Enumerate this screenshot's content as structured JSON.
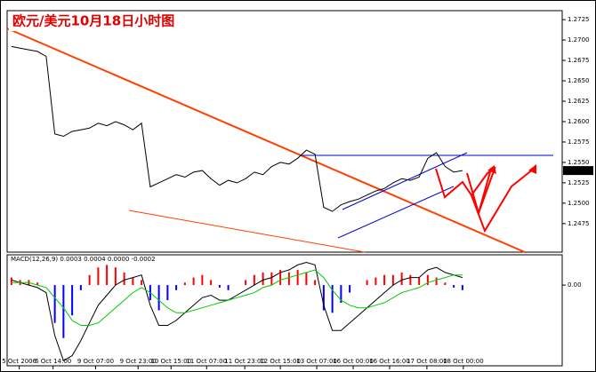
{
  "chart_data": [
    {
      "type": "line",
      "title": "欧元/美元10月18日小时图",
      "xlim": [
        0,
        64
      ],
      "xticks": [
        {
          "value": 1.4,
          "label": "5 Oct 2006"
        },
        {
          "value": 5.3,
          "label": "6 Oct 14:00"
        },
        {
          "value": 10.2,
          "label": "9 Oct 07:00"
        },
        {
          "value": 15.1,
          "label": "9 Oct 23:00"
        },
        {
          "value": 18.9,
          "label": "10 Oct 15:00"
        },
        {
          "value": 23,
          "label": "11 Oct 07:00"
        },
        {
          "value": 27.4,
          "label": "11 Oct 23:00"
        },
        {
          "value": 31.5,
          "label": "12 Oct 15:00"
        },
        {
          "value": 35.7,
          "label": "13 Oct 07:00"
        },
        {
          "value": 39.9,
          "label": "16 Oct 00:00"
        },
        {
          "value": 44.1,
          "label": "16 Oct 16:00"
        },
        {
          "value": 48.4,
          "label": "17 Oct 08:00"
        },
        {
          "value": 52.6,
          "label": "18 Oct 00:00"
        }
      ],
      "ylim": [
        1.244,
        1.2736
      ],
      "yticks": [
        1.2725,
        {
          "value": 1.27,
          "label": "1.2700"
        },
        1.2675,
        {
          "value": 1.265,
          "label": "1.2650"
        },
        1.2625,
        {
          "value": 1.26,
          "label": "1.2600"
        },
        1.2575,
        {
          "value": 1.255,
          "label": "1.2550"
        },
        1.2525,
        {
          "value": 1.25,
          "label": "1.2500"
        },
        1.2475
      ],
      "last_price": {
        "value": 1.254,
        "label": "1.2540"
      },
      "series": [
        {
          "color": "#000000",
          "values": [
            1.2692,
            1.269,
            1.2688,
            1.2686,
            1.268,
            1.2585,
            1.2582,
            1.2588,
            1.259,
            1.2592,
            1.2598,
            1.2595,
            1.26,
            1.2596,
            1.259,
            1.2598,
            1.252,
            1.2525,
            1.253,
            1.2535,
            1.2532,
            1.2538,
            1.254,
            1.253,
            1.2522,
            1.2528,
            1.2525,
            1.253,
            1.2538,
            1.2535,
            1.2545,
            1.255,
            1.2548,
            1.2555,
            1.2565,
            1.256,
            1.2495,
            1.249,
            1.2498,
            1.2502,
            1.2505,
            1.251,
            1.2515,
            1.2518,
            1.2525,
            1.253,
            1.2528,
            1.2532,
            1.2555,
            1.2562,
            1.2545,
            1.2538,
            1.254
          ]
        }
      ]
    },
    {
      "type": "bar",
      "label": "MACD(12,26,9) 0.0003 0.0004 0.0000 -0.0002",
      "xlim": [
        0,
        64
      ],
      "ylim": [
        -0.0032,
        0.0012
      ],
      "yticks": [
        {
          "value": 0,
          "label": "0.00"
        }
      ],
      "series": [
        {
          "type": "bar",
          "color": "#ff0000",
          "negative_color": "#0000ff",
          "values": [
            0.0003,
            0.0002,
            0.0002,
            0.0001,
            0,
            -0.0015,
            -0.0021,
            -0.0012,
            -0.0002,
            0.0004,
            0.0007,
            0.0008,
            0.0007,
            0.0005,
            0.0003,
            0.0002,
            -0.0006,
            -0.001,
            -0.0006,
            -0.0002,
            0.0001,
            0.0003,
            0.0004,
            0.0002,
            -0.0001,
            -0.0002,
            0,
            0.0002,
            0.0004,
            0.0005,
            0.0005,
            0.0006,
            0.0005,
            0.0006,
            0.0005,
            0.0002,
            -0.001,
            -0.0011,
            -0.0007,
            -0.0003,
            0,
            0.0002,
            0.0003,
            0.0004,
            0.0004,
            0.0005,
            0.0004,
            0.0003,
            0.0004,
            0.0003,
            0.0001,
            -0.0001,
            -0.0002
          ]
        },
        {
          "type": "line",
          "color": "#000000",
          "values": [
            0.0002,
            0.0001,
            0,
            -0.0001,
            -0.0003,
            -0.002,
            -0.003,
            -0.0028,
            -0.0022,
            -0.0015,
            -0.0008,
            -0.0004,
            0,
            0.0002,
            0.0003,
            0.0004,
            -0.0008,
            -0.0016,
            -0.0016,
            -0.0014,
            -0.0011,
            -0.0008,
            -0.0005,
            -0.0004,
            -0.0006,
            -0.0006,
            -0.0004,
            -0.0002,
            0,
            0.0002,
            0.0003,
            0.0005,
            0.0006,
            0.0008,
            0.0009,
            0.0008,
            -0.0008,
            -0.0018,
            -0.0018,
            -0.0015,
            -0.0012,
            -0.0009,
            -0.0006,
            -0.0003,
            0,
            0.0002,
            0.0003,
            0.0003,
            0.0006,
            0.0007,
            0.0005,
            0.0004,
            0.0003
          ]
        },
        {
          "type": "line",
          "color": "#00cc00",
          "values": [
            0.0001,
            0.0001,
            0.0001,
            0,
            -0.0001,
            -0.0005,
            -0.0009,
            -0.0014,
            -0.0016,
            -0.0016,
            -0.0015,
            -0.0012,
            -0.0009,
            -0.0006,
            -0.0003,
            -0.0001,
            -0.0003,
            -0.0006,
            -0.0009,
            -0.0011,
            -0.0011,
            -0.001,
            -0.0009,
            -0.0008,
            -0.0007,
            -0.0006,
            -0.0005,
            -0.0004,
            -0.0003,
            -0.0001,
            0,
            0.0002,
            0.0003,
            0.0004,
            0.0005,
            0.0006,
            0.0003,
            -0.0002,
            -0.0006,
            -0.0008,
            -0.0009,
            -0.0009,
            -0.0008,
            -0.0007,
            -0.0005,
            -0.0003,
            -0.0002,
            -0.0001,
            0.0001,
            0.0002,
            0.0003,
            0.0004,
            0.0004
          ]
        }
      ]
    }
  ]
}
